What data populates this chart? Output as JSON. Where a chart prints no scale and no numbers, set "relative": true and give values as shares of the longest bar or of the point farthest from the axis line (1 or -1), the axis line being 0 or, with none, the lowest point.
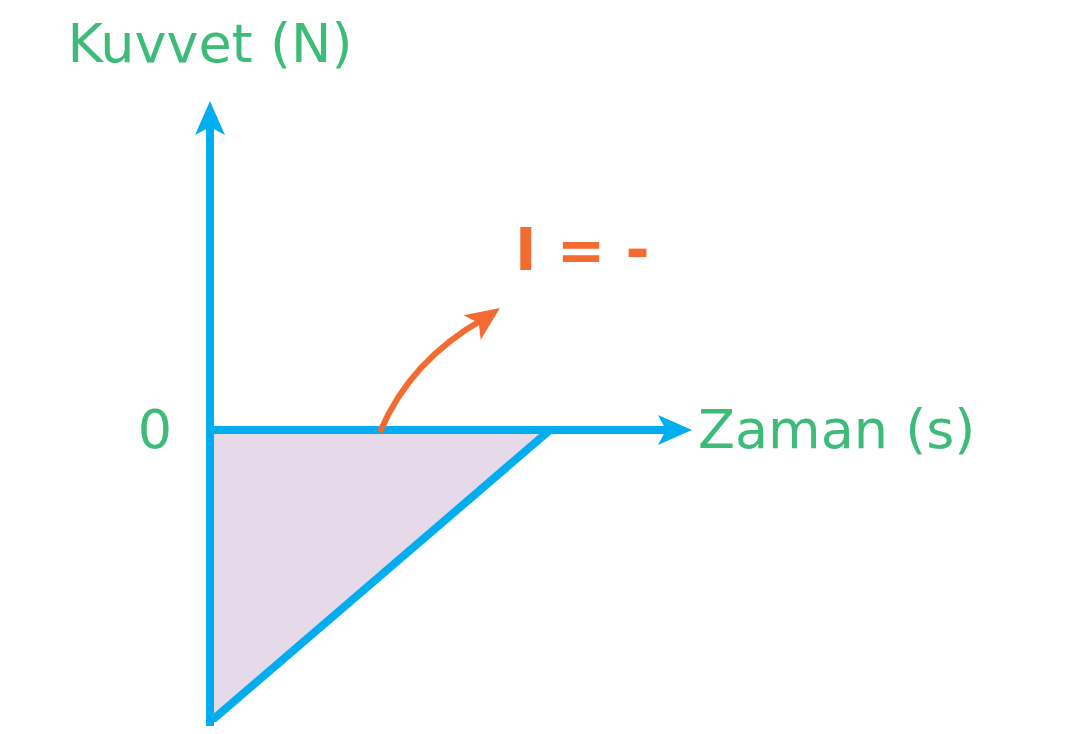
{
  "chart_data": {
    "type": "area",
    "relative": true,
    "xlabel": "Zaman (s)",
    "categories": [
      null,
      null
    ],
    "series": [
      {
        "color": "#00aeef",
        "values": [
          -1,
          0
        ]
      }
    ],
    "annotations": [
      "I = -",
      "0",
      "Kuvvet (N)"
    ],
    "legend": false
  }
}
